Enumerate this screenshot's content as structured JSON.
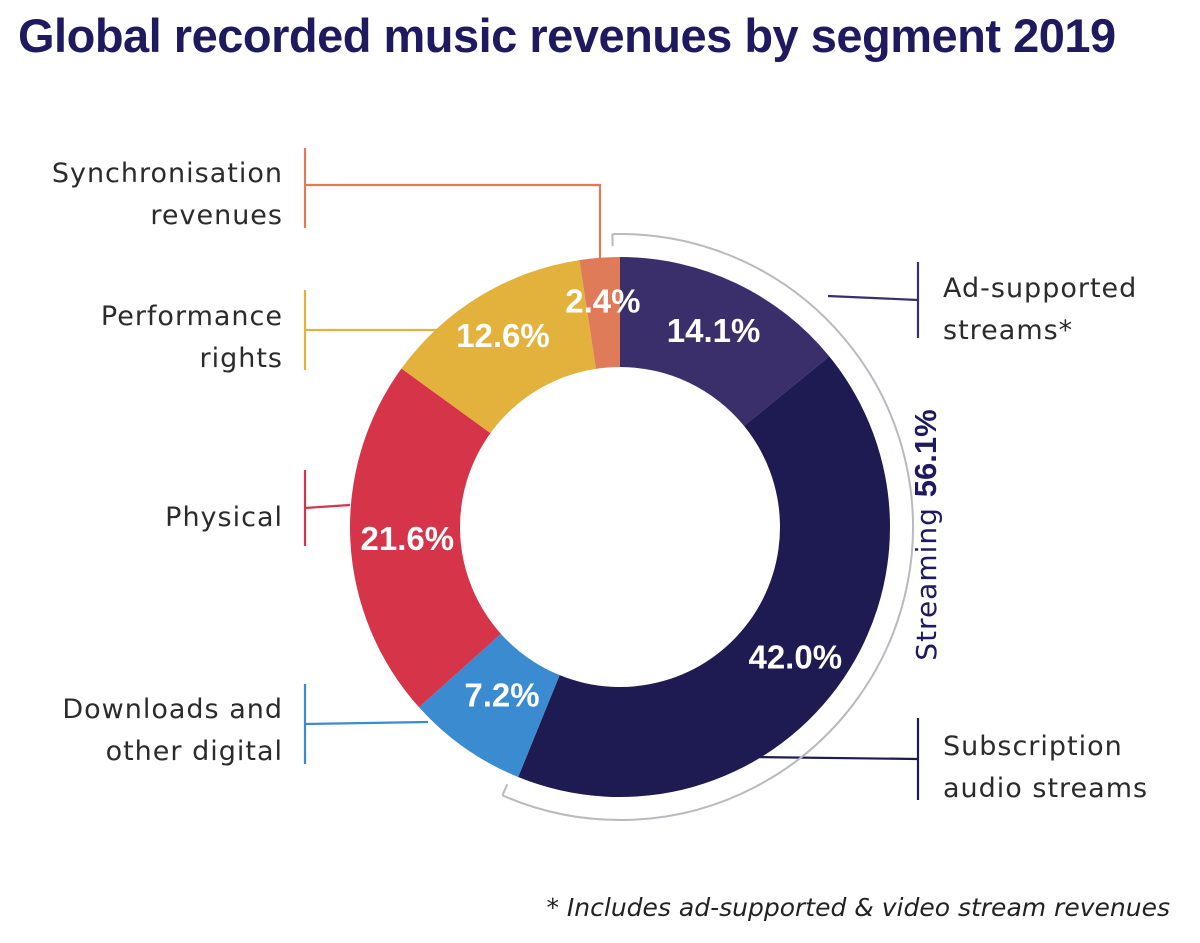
{
  "chart_data": {
    "type": "pie",
    "title": "Global recorded music revenues by segment 2019",
    "unit": "%",
    "slices": [
      {
        "name": "Ad-supported streams*",
        "lines": [
          "Ad-supported",
          "streams*"
        ],
        "value": 14.1,
        "label": "14.1%",
        "color": "#3a2f6b"
      },
      {
        "name": "Subscription audio streams",
        "lines": [
          "Subscription",
          "audio streams"
        ],
        "value": 42.0,
        "label": "42.0%",
        "color": "#1e1a52"
      },
      {
        "name": "Downloads and other digital",
        "lines": [
          "Downloads and",
          "other digital"
        ],
        "value": 7.2,
        "label": "7.2%",
        "color": "#3b8bd0"
      },
      {
        "name": "Physical",
        "lines": [
          "Physical"
        ],
        "value": 21.6,
        "label": "21.6%",
        "color": "#d63448"
      },
      {
        "name": "Performance rights",
        "lines": [
          "Performance",
          "rights"
        ],
        "value": 12.6,
        "label": "12.6%",
        "color": "#e3b23c"
      },
      {
        "name": "Synchronisation revenues",
        "lines": [
          "Synchronisation",
          "revenues"
        ],
        "value": 2.4,
        "label": "2.4%",
        "color": "#e07b5a"
      }
    ],
    "group": {
      "name": "Streaming",
      "value_label": "56.1%",
      "members": [
        "Ad-supported streams*",
        "Subscription audio streams"
      ]
    },
    "footnote": "* Includes ad-supported & video stream revenues"
  }
}
